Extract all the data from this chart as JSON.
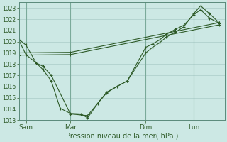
{
  "xlabel": "Pression niveau de la mer( hPa )",
  "background_color": "#cce8e4",
  "grid_color": "#aaccc8",
  "line_color": "#2d5a27",
  "ylim": [
    1013,
    1023.5
  ],
  "yticks": [
    1013,
    1014,
    1015,
    1016,
    1017,
    1018,
    1019,
    1020,
    1021,
    1022,
    1023
  ],
  "x_tick_labels": [
    "Sam",
    "Mar",
    "Dim",
    "Lun"
  ],
  "x_tick_positions": [
    10,
    75,
    185,
    255
  ],
  "xlim": [
    0,
    300
  ],
  "series": [
    {
      "x": [
        0,
        10,
        25,
        35,
        47,
        60,
        75,
        90,
        100,
        115,
        128,
        143,
        158,
        185,
        195,
        205,
        215,
        228,
        240,
        255,
        265,
        278,
        292
      ],
      "y": [
        1020.2,
        1019.7,
        1018.1,
        1017.5,
        1016.5,
        1014.05,
        1013.6,
        1013.55,
        1013.2,
        1014.5,
        1015.45,
        1016.0,
        1016.5,
        1019.0,
        1019.5,
        1019.9,
        1020.4,
        1020.85,
        1021.3,
        1022.5,
        1023.2,
        1022.5,
        1021.7
      ]
    },
    {
      "x": [
        0,
        10,
        25,
        35,
        47,
        75,
        100,
        128,
        158,
        185,
        195,
        205,
        215,
        228,
        240,
        255,
        265,
        278,
        292
      ],
      "y": [
        1020.1,
        1018.85,
        1018.1,
        1017.8,
        1017.0,
        1013.55,
        1013.4,
        1015.5,
        1016.5,
        1019.5,
        1019.8,
        1020.15,
        1020.65,
        1021.1,
        1021.45,
        1022.4,
        1022.85,
        1022.1,
        1021.65
      ]
    },
    {
      "x": [
        0,
        75,
        292
      ],
      "y": [
        1019.0,
        1019.05,
        1021.7
      ]
    },
    {
      "x": [
        0,
        75,
        292
      ],
      "y": [
        1018.8,
        1018.85,
        1021.5
      ]
    }
  ],
  "figsize": [
    3.2,
    2.0
  ],
  "dpi": 100
}
